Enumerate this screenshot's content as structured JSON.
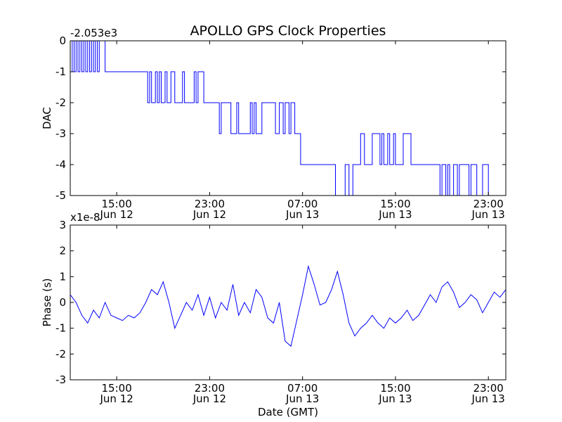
{
  "figure": {
    "title": "APOLLO GPS Clock Properties",
    "xlabel": "Date (GMT)"
  },
  "chart_data": [
    {
      "type": "line",
      "title": "APOLLO GPS Clock Properties",
      "ylabel": "DAC",
      "offset_label": "-2.053e3",
      "line_color": "#0000ff",
      "xlim": [
        "2012-06-12T11:00",
        "2012-06-14T00:30"
      ],
      "ylim": [
        -5,
        0
      ],
      "yticks": [
        0,
        -1,
        -2,
        -3,
        -4,
        -5
      ],
      "ytick_labels": [
        "0",
        "-1",
        "-2",
        "-3",
        "-4",
        "-5"
      ],
      "xticks": [
        "2012-06-12T15:00",
        "2012-06-12T23:00",
        "2012-06-13T07:00",
        "2012-06-13T15:00",
        "2012-06-13T23:00"
      ],
      "xtick_labels": [
        [
          "15:00",
          "Jun 12"
        ],
        [
          "23:00",
          "Jun 12"
        ],
        [
          "07:00",
          "Jun 13"
        ],
        [
          "15:00",
          "Jun 13"
        ],
        [
          "23:00",
          "Jun 13"
        ]
      ],
      "x": [
        "2012-06-12T11:00",
        "2012-06-12T11:10",
        "2012-06-12T11:20",
        "2012-06-12T11:30",
        "2012-06-12T11:40",
        "2012-06-12T11:50",
        "2012-06-12T12:00",
        "2012-06-12T12:10",
        "2012-06-12T12:20",
        "2012-06-12T12:30",
        "2012-06-12T12:40",
        "2012-06-12T12:50",
        "2012-06-12T13:00",
        "2012-06-12T13:10",
        "2012-06-12T13:20",
        "2012-06-12T13:30",
        "2012-06-12T14:00",
        "2012-06-12T15:00",
        "2012-06-12T16:00",
        "2012-06-12T17:00",
        "2012-06-12T17:40",
        "2012-06-12T17:50",
        "2012-06-12T18:00",
        "2012-06-12T18:20",
        "2012-06-12T18:30",
        "2012-06-12T18:40",
        "2012-06-12T18:50",
        "2012-06-12T19:00",
        "2012-06-12T19:10",
        "2012-06-12T19:20",
        "2012-06-12T19:30",
        "2012-06-12T19:40",
        "2012-06-12T20:00",
        "2012-06-12T20:30",
        "2012-06-12T20:40",
        "2012-06-12T20:50",
        "2012-06-12T21:00",
        "2012-06-12T21:10",
        "2012-06-12T21:40",
        "2012-06-12T21:50",
        "2012-06-12T22:00",
        "2012-06-12T22:30",
        "2012-06-12T23:00",
        "2012-06-12T23:40",
        "2012-06-12T23:50",
        "2012-06-13T00:00",
        "2012-06-13T00:10",
        "2012-06-13T00:40",
        "2012-06-13T00:50",
        "2012-06-13T01:00",
        "2012-06-13T01:20",
        "2012-06-13T01:30",
        "2012-06-13T01:40",
        "2012-06-13T02:00",
        "2012-06-13T02:30",
        "2012-06-13T02:40",
        "2012-06-13T02:50",
        "2012-06-13T03:00",
        "2012-06-13T03:30",
        "2012-06-13T04:00",
        "2012-06-13T04:40",
        "2012-06-13T05:00",
        "2012-06-13T05:20",
        "2012-06-13T05:30",
        "2012-06-13T05:50",
        "2012-06-13T06:00",
        "2012-06-13T06:20",
        "2012-06-13T06:30",
        "2012-06-13T06:40",
        "2012-06-13T06:50",
        "2012-06-13T07:00",
        "2012-06-13T07:10",
        "2012-06-13T08:00",
        "2012-06-13T09:00",
        "2012-06-13T09:50",
        "2012-06-13T10:00",
        "2012-06-13T10:40",
        "2012-06-13T11:00",
        "2012-06-13T11:20",
        "2012-06-13T11:30",
        "2012-06-13T12:00",
        "2012-06-13T12:10",
        "2012-06-13T12:20",
        "2012-06-13T12:40",
        "2012-06-13T13:00",
        "2012-06-13T13:40",
        "2012-06-13T13:50",
        "2012-06-13T14:00",
        "2012-06-13T14:20",
        "2012-06-13T14:30",
        "2012-06-13T14:50",
        "2012-06-13T15:00",
        "2012-06-13T15:30",
        "2012-06-13T15:40",
        "2012-06-13T16:20",
        "2012-06-13T16:30",
        "2012-06-13T17:00",
        "2012-06-13T18:00",
        "2012-06-13T18:50",
        "2012-06-13T19:00",
        "2012-06-13T19:20",
        "2012-06-13T19:30",
        "2012-06-13T19:40",
        "2012-06-13T20:00",
        "2012-06-13T20:20",
        "2012-06-13T20:30",
        "2012-06-13T21:00",
        "2012-06-13T21:20",
        "2012-06-13T21:30",
        "2012-06-13T21:40",
        "2012-06-13T22:00",
        "2012-06-13T22:30",
        "2012-06-13T22:40",
        "2012-06-13T23:00",
        "2012-06-13T23:40"
      ],
      "series": [
        {
          "values": [
            -1,
            0,
            -1,
            0,
            -1,
            0,
            -1,
            0,
            -1,
            0,
            -1,
            0,
            -1,
            0,
            -1,
            0,
            -1,
            -1,
            -1,
            -1,
            -2,
            -1,
            -2,
            -1,
            -2,
            -1,
            -2,
            -2,
            -1,
            -2,
            -2,
            -1,
            -2,
            -2,
            -1,
            -2,
            -2,
            -2,
            -1,
            -2,
            -1,
            -2,
            -2,
            -2,
            -3,
            -2,
            -2,
            -2,
            -3,
            -3,
            -2,
            -3,
            -3,
            -3,
            -2,
            -3,
            -2,
            -3,
            -2,
            -2,
            -3,
            -2,
            -3,
            -2,
            -3,
            -2,
            -3,
            -3,
            -3,
            -4,
            -4,
            -4,
            -4,
            -4,
            -5,
            -5,
            -4,
            -5,
            -4,
            -4,
            -3,
            -3,
            -4,
            -4,
            -3,
            -4,
            -3,
            -4,
            -3,
            -4,
            -3,
            -4,
            -4,
            -3,
            -4,
            -4,
            -4,
            -4,
            -5,
            -4,
            -5,
            -4,
            -5,
            -4,
            -5,
            -4,
            -4,
            -5,
            -4,
            -4,
            -5,
            -4,
            -4,
            -5,
            -5
          ]
        }
      ]
    },
    {
      "type": "line",
      "ylabel": "Phase (s)",
      "offset_label": "x1e-8",
      "line_color": "#0000ff",
      "xlim": [
        "2012-06-12T11:00",
        "2012-06-14T00:30"
      ],
      "ylim": [
        -3,
        3
      ],
      "yticks": [
        3,
        2,
        1,
        0,
        -1,
        -2,
        -3
      ],
      "ytick_labels": [
        "3",
        "2",
        "1",
        "0",
        "-1",
        "-2",
        "-3"
      ],
      "xticks": [
        "2012-06-12T15:00",
        "2012-06-12T23:00",
        "2012-06-13T07:00",
        "2012-06-13T15:00",
        "2012-06-13T23:00"
      ],
      "xtick_labels": [
        [
          "15:00",
          "Jun 12"
        ],
        [
          "23:00",
          "Jun 12"
        ],
        [
          "07:00",
          "Jun 13"
        ],
        [
          "15:00",
          "Jun 13"
        ],
        [
          "23:00",
          "Jun 13"
        ]
      ],
      "x": [
        "2012-06-12T11:00",
        "2012-06-12T11:30",
        "2012-06-12T12:00",
        "2012-06-12T12:30",
        "2012-06-12T13:00",
        "2012-06-12T13:30",
        "2012-06-12T14:00",
        "2012-06-12T14:30",
        "2012-06-12T15:00",
        "2012-06-12T15:30",
        "2012-06-12T16:00",
        "2012-06-12T16:30",
        "2012-06-12T17:00",
        "2012-06-12T17:30",
        "2012-06-12T18:00",
        "2012-06-12T18:30",
        "2012-06-12T19:00",
        "2012-06-12T19:30",
        "2012-06-12T20:00",
        "2012-06-12T20:30",
        "2012-06-12T21:00",
        "2012-06-12T21:30",
        "2012-06-12T22:00",
        "2012-06-12T22:30",
        "2012-06-12T23:00",
        "2012-06-12T23:30",
        "2012-06-13T00:00",
        "2012-06-13T00:30",
        "2012-06-13T01:00",
        "2012-06-13T01:30",
        "2012-06-13T02:00",
        "2012-06-13T02:30",
        "2012-06-13T03:00",
        "2012-06-13T03:30",
        "2012-06-13T04:00",
        "2012-06-13T04:30",
        "2012-06-13T05:00",
        "2012-06-13T05:30",
        "2012-06-13T06:00",
        "2012-06-13T06:30",
        "2012-06-13T07:00",
        "2012-06-13T07:30",
        "2012-06-13T08:00",
        "2012-06-13T08:30",
        "2012-06-13T09:00",
        "2012-06-13T09:30",
        "2012-06-13T10:00",
        "2012-06-13T10:30",
        "2012-06-13T11:00",
        "2012-06-13T11:30",
        "2012-06-13T12:00",
        "2012-06-13T12:30",
        "2012-06-13T13:00",
        "2012-06-13T13:30",
        "2012-06-13T14:00",
        "2012-06-13T14:30",
        "2012-06-13T15:00",
        "2012-06-13T15:30",
        "2012-06-13T16:00",
        "2012-06-13T16:30",
        "2012-06-13T17:00",
        "2012-06-13T17:30",
        "2012-06-13T18:00",
        "2012-06-13T18:30",
        "2012-06-13T19:00",
        "2012-06-13T19:30",
        "2012-06-13T20:00",
        "2012-06-13T20:30",
        "2012-06-13T21:00",
        "2012-06-13T21:30",
        "2012-06-13T22:00",
        "2012-06-13T22:30",
        "2012-06-13T23:00",
        "2012-06-13T23:30",
        "2012-06-14T00:00",
        "2012-06-14T00:30"
      ],
      "series": [
        {
          "values": [
            0.3,
            0.0,
            -0.5,
            -0.8,
            -0.3,
            -0.6,
            0.0,
            -0.5,
            -0.6,
            -0.7,
            -0.5,
            -0.6,
            -0.4,
            0.0,
            0.5,
            0.3,
            0.8,
            0.0,
            -1.0,
            -0.5,
            0.0,
            -0.3,
            0.3,
            -0.5,
            0.2,
            -0.6,
            0.0,
            -0.3,
            0.7,
            -0.5,
            0.0,
            -0.4,
            0.5,
            0.2,
            -0.6,
            -0.8,
            0.0,
            -1.5,
            -1.7,
            -0.7,
            0.3,
            1.4,
            0.7,
            -0.1,
            0.0,
            0.5,
            1.2,
            0.3,
            -0.8,
            -1.3,
            -1.0,
            -0.8,
            -0.5,
            -0.8,
            -1.0,
            -0.6,
            -0.8,
            -0.6,
            -0.3,
            -0.7,
            -0.5,
            -0.1,
            0.3,
            0.0,
            0.6,
            0.8,
            0.4,
            -0.2,
            0.0,
            0.3,
            0.1,
            -0.4,
            0.0,
            0.4,
            0.2,
            0.5
          ]
        }
      ]
    }
  ]
}
